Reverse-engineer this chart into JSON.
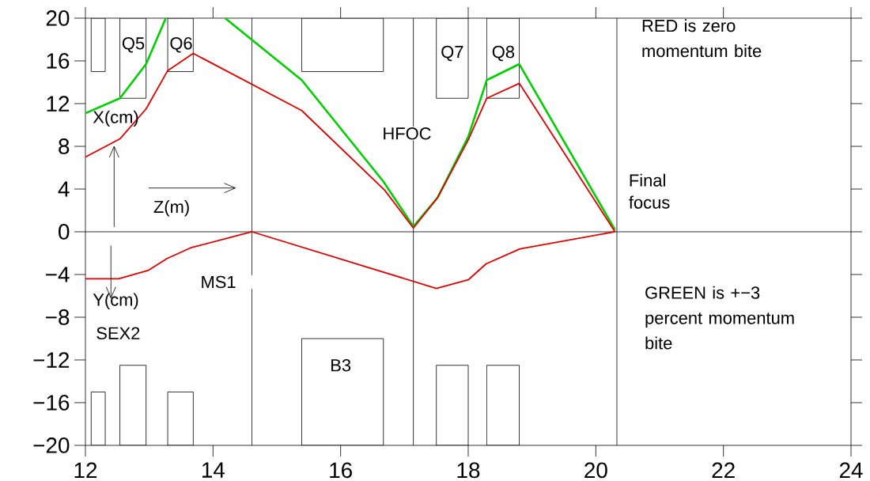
{
  "chart_data": {
    "type": "line",
    "xlim": [
      12,
      24
    ],
    "ylim": [
      -20,
      20
    ],
    "xticks": [
      12,
      14,
      16,
      18,
      20,
      22,
      24
    ],
    "yticks": [
      {
        "value": -20,
        "label": "−20"
      },
      {
        "value": -16,
        "label": "−16"
      },
      {
        "value": -12,
        "label": "−12"
      },
      {
        "value": -8,
        "label": "−8"
      },
      {
        "value": -4,
        "label": "−4"
      },
      0,
      4,
      8,
      12,
      16,
      20
    ],
    "series": [
      {
        "color": "#00d000",
        "x": [
          12.0,
          12.54,
          12.95,
          13.26,
          13.7,
          14.19,
          15.39,
          16.67,
          17.14,
          17.52,
          18.0,
          18.29,
          18.8,
          20.3
        ],
        "values": [
          11.1,
          12.5,
          15.7,
          20,
          null,
          20,
          14.2,
          4.7,
          0.5,
          3.2,
          8.9,
          14.2,
          15.7,
          0.2
        ]
      },
      {
        "color": "#e00000",
        "x": [
          12.0,
          12.54,
          12.95,
          13.29,
          13.69,
          15.39,
          16.69,
          17.14,
          17.52,
          18.0,
          18.29,
          18.8,
          20.3
        ],
        "values": [
          7.0,
          8.7,
          11.5,
          15.1,
          16.7,
          11.35,
          3.9,
          0.35,
          3.2,
          8.6,
          12.5,
          13.9,
          0
        ]
      },
      {
        "color": "#e00000",
        "x": [
          12.0,
          12.52,
          12.99,
          13.28,
          13.65,
          14.61,
          17.5,
          18.0,
          18.28,
          18.81,
          20.3
        ],
        "values": [
          -4.4,
          -4.4,
          -3.6,
          -2.5,
          -1.5,
          0,
          -5.3,
          -4.5,
          -3.0,
          -1.6,
          0
        ]
      }
    ],
    "ref_lines": [
      {
        "axis": "y",
        "value": 0,
        "color": "#000000"
      },
      {
        "axis": "x",
        "value": 14.61,
        "label": "MS1",
        "color": "#000000"
      },
      {
        "axis": "x",
        "value": 17.14,
        "label": "HFOC",
        "color": "#000000"
      },
      {
        "axis": "x",
        "value": 20.33,
        "label": "Final focus",
        "color": "#000000"
      }
    ],
    "annotations": [
      "Q5",
      "Q6",
      "Q7",
      "Q8",
      "X(cm)",
      "Z(m)",
      "SEX2",
      "B3",
      "Y(cm)",
      "RED is zero momentum bite",
      "GREEN is +−3 percent momentum bite"
    ]
  }
}
